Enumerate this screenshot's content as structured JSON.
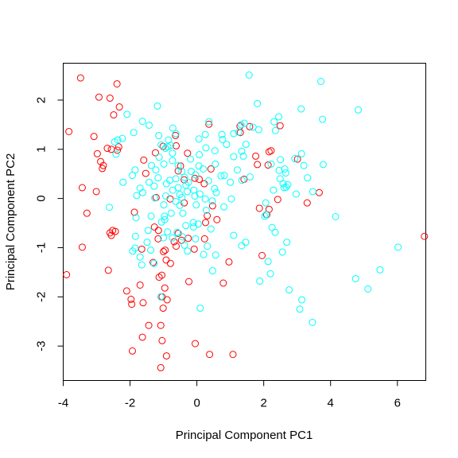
{
  "chart_data": {
    "type": "scatter",
    "xlabel": "Principal Component PC1",
    "ylabel": "Principal Component PC2",
    "xlim": [
      -4.0,
      6.85
    ],
    "ylim": [
      -3.7,
      2.75
    ],
    "xticks": [
      -4,
      -2,
      0,
      2,
      4,
      6
    ],
    "yticks": [
      -3,
      -2,
      -1,
      0,
      1,
      2
    ],
    "grid": false,
    "marker": "open-circle",
    "series": [
      {
        "color": "#ff0000",
        "points": [
          [
            -3.48,
            2.45
          ],
          [
            -2.93,
            2.06
          ],
          [
            -2.6,
            2.04
          ],
          [
            -2.39,
            2.33
          ],
          [
            -2.49,
            1.7
          ],
          [
            -2.32,
            1.86
          ],
          [
            -3.83,
            1.36
          ],
          [
            -3.08,
            1.26
          ],
          [
            -2.98,
            0.91
          ],
          [
            -2.68,
            1.02
          ],
          [
            -2.56,
            1.0
          ],
          [
            -2.34,
            1.05
          ],
          [
            -2.38,
            0.98
          ],
          [
            -2.88,
            0.75
          ],
          [
            -2.83,
            0.61
          ],
          [
            -2.8,
            0.67
          ],
          [
            -3.43,
            0.22
          ],
          [
            -3.01,
            0.14
          ],
          [
            -3.29,
            -0.3
          ],
          [
            -2.6,
            -0.7
          ],
          [
            -2.52,
            -0.65
          ],
          [
            -2.44,
            -0.67
          ],
          [
            -2.56,
            -0.75
          ],
          [
            -3.43,
            -0.99
          ],
          [
            -2.65,
            -1.46
          ],
          [
            -3.9,
            -1.55
          ],
          [
            -2.1,
            -1.88
          ],
          [
            -1.97,
            -2.05
          ],
          [
            -1.95,
            -2.15
          ],
          [
            -1.61,
            -2.12
          ],
          [
            -1.7,
            -1.76
          ],
          [
            -1.44,
            -2.58
          ],
          [
            -1.93,
            -3.1
          ],
          [
            -1.63,
            -2.82
          ],
          [
            -1.08,
            -2.58
          ],
          [
            -1.04,
            -2.89
          ],
          [
            -0.91,
            -3.2
          ],
          [
            -1.08,
            -3.44
          ],
          [
            -1.01,
            -2.23
          ],
          [
            -0.89,
            -2.06
          ],
          [
            -1.04,
            -2.0
          ],
          [
            -0.96,
            -1.82
          ],
          [
            -1.05,
            -1.56
          ],
          [
            -1.31,
            -1.3
          ],
          [
            -1.13,
            -1.6
          ],
          [
            -0.79,
            -1.32
          ],
          [
            -0.92,
            -1.25
          ],
          [
            -0.95,
            -1.05
          ],
          [
            -1.0,
            -1.08
          ],
          [
            -0.68,
            -0.88
          ],
          [
            -0.62,
            -0.97
          ],
          [
            -0.56,
            -0.71
          ],
          [
            -0.46,
            -0.85
          ],
          [
            -0.26,
            -0.81
          ],
          [
            -0.08,
            -1.03
          ],
          [
            0.23,
            -0.82
          ],
          [
            0.26,
            -0.49
          ],
          [
            0.31,
            -0.35
          ],
          [
            0.6,
            -0.43
          ],
          [
            0.47,
            -0.15
          ],
          [
            -0.24,
            -1.69
          ],
          [
            0.79,
            -1.72
          ],
          [
            0.96,
            -1.29
          ],
          [
            0.38,
            -3.17
          ],
          [
            -0.05,
            -2.95
          ],
          [
            1.08,
            -3.17
          ],
          [
            -1.59,
            0.78
          ],
          [
            -1.53,
            0.51
          ],
          [
            -1.24,
            0.93
          ],
          [
            -1.01,
            1.06
          ],
          [
            -0.62,
            1.07
          ],
          [
            -0.64,
            1.28
          ],
          [
            -1.65,
            -1.03
          ],
          [
            -1.27,
            -0.58
          ],
          [
            -1.15,
            -0.65
          ],
          [
            -1.16,
            -0.82
          ],
          [
            -0.38,
            -0.09
          ],
          [
            -1.22,
            0.02
          ],
          [
            -0.8,
            -0.01
          ],
          [
            -0.56,
            0.56
          ],
          [
            -0.28,
            0.92
          ],
          [
            -0.49,
            0.66
          ],
          [
            -0.38,
            0.38
          ],
          [
            -0.06,
            0.41
          ],
          [
            0.07,
            0.39
          ],
          [
            0.22,
            0.3
          ],
          [
            0.42,
            0.6
          ],
          [
            0.36,
            1.51
          ],
          [
            1.29,
            1.47
          ],
          [
            1.3,
            1.34
          ],
          [
            1.41,
            0.39
          ],
          [
            1.76,
            0.86
          ],
          [
            2.22,
            0.97
          ],
          [
            2.16,
            0.95
          ],
          [
            2.13,
            0.68
          ],
          [
            1.81,
            0.69
          ],
          [
            2.09,
            -0.33
          ],
          [
            2.16,
            -0.22
          ],
          [
            1.87,
            -0.2
          ],
          [
            1.95,
            -1.16
          ],
          [
            2.42,
            -0.02
          ],
          [
            3.01,
            0.8
          ],
          [
            3.3,
            -0.09
          ],
          [
            3.66,
            0.12
          ],
          [
            6.81,
            -0.77
          ],
          [
            1.58,
            1.46
          ],
          [
            2.49,
            1.48
          ],
          [
            -1.87,
            -0.28
          ]
        ]
      },
      {
        "color": "#00ffff",
        "points": [
          [
            1.56,
            2.51
          ],
          [
            3.71,
            2.38
          ],
          [
            1.81,
            1.93
          ],
          [
            -1.18,
            1.88
          ],
          [
            3.12,
            1.82
          ],
          [
            4.83,
            1.8
          ],
          [
            2.45,
            1.66
          ],
          [
            2.31,
            1.56
          ],
          [
            1.68,
            1.45
          ],
          [
            3.76,
            1.61
          ],
          [
            -2.09,
            1.71
          ],
          [
            -1.63,
            1.57
          ],
          [
            -1.43,
            1.49
          ],
          [
            -0.72,
            1.43
          ],
          [
            -0.63,
            1.32
          ],
          [
            -1.14,
            1.28
          ],
          [
            -1.89,
            1.34
          ],
          [
            -2.37,
            1.19
          ],
          [
            -2.46,
            1.15
          ],
          [
            -2.23,
            1.22
          ],
          [
            -0.85,
            1.19
          ],
          [
            -0.78,
            1.08
          ],
          [
            -0.94,
            1.02
          ],
          [
            -1.07,
            1.09
          ],
          [
            -0.87,
            1.05
          ],
          [
            0.25,
            1.3
          ],
          [
            0.36,
            1.56
          ],
          [
            0.06,
            1.21
          ],
          [
            0.54,
            0.97
          ],
          [
            0.77,
            1.2
          ],
          [
            1.25,
            1.35
          ],
          [
            1.42,
            1.53
          ],
          [
            1.1,
            1.32
          ],
          [
            1.85,
            1.4
          ],
          [
            2.35,
            1.38
          ],
          [
            1.47,
            1.1
          ],
          [
            1.39,
            0.86
          ],
          [
            1.34,
            0.96
          ],
          [
            1.1,
            0.85
          ],
          [
            0.89,
            1.1
          ],
          [
            0.55,
            0.7
          ],
          [
            0.82,
            0.47
          ],
          [
            1.0,
            0.33
          ],
          [
            1.35,
            0.37
          ],
          [
            2.5,
            0.79
          ],
          [
            2.93,
            0.81
          ],
          [
            3.13,
            0.91
          ],
          [
            3.2,
            0.67
          ],
          [
            3.78,
            0.69
          ],
          [
            2.63,
            0.6
          ],
          [
            2.66,
            0.52
          ],
          [
            2.58,
            0.3
          ],
          [
            2.61,
            0.22
          ],
          [
            2.67,
            0.23
          ],
          [
            2.72,
            0.28
          ],
          [
            2.49,
            0.4
          ],
          [
            2.46,
            0.57
          ],
          [
            2.22,
            0.7
          ],
          [
            3.31,
            0.42
          ],
          [
            3.47,
            0.14
          ],
          [
            2.97,
            0.09
          ],
          [
            2.29,
            0.17
          ],
          [
            2.06,
            -0.09
          ],
          [
            2.07,
            -0.33
          ],
          [
            2.03,
            -0.36
          ],
          [
            4.15,
            -0.37
          ],
          [
            2.25,
            -0.59
          ],
          [
            2.34,
            -0.69
          ],
          [
            2.13,
            -1.28
          ],
          [
            1.88,
            -1.68
          ],
          [
            2.69,
            -0.89
          ],
          [
            2.56,
            -1.09
          ],
          [
            2.2,
            -1.53
          ],
          [
            2.76,
            -1.86
          ],
          [
            3.14,
            -2.06
          ],
          [
            3.08,
            -2.25
          ],
          [
            3.46,
            -2.52
          ],
          [
            4.75,
            -1.63
          ],
          [
            5.12,
            -1.84
          ],
          [
            5.48,
            -1.45
          ],
          [
            6.02,
            -0.99
          ],
          [
            -2.62,
            -0.18
          ],
          [
            -1.82,
            -0.39
          ],
          [
            -1.8,
            0.06
          ],
          [
            -1.7,
            0.21
          ],
          [
            -1.93,
            0.47
          ],
          [
            -1.85,
            0.58
          ],
          [
            -2.42,
            0.9
          ],
          [
            -2.21,
            0.33
          ],
          [
            -1.28,
            0.25
          ],
          [
            -1.23,
            0.58
          ],
          [
            -1.13,
            0.84
          ],
          [
            -0.99,
            0.7
          ],
          [
            -0.73,
            0.77
          ],
          [
            -0.56,
            0.67
          ],
          [
            -0.45,
            0.55
          ],
          [
            -0.63,
            0.4
          ],
          [
            -0.37,
            0.43
          ],
          [
            -0.19,
            0.8
          ],
          [
            0.06,
            0.66
          ],
          [
            -0.33,
            0.27
          ],
          [
            -0.06,
            0.05
          ],
          [
            0.09,
            0.09
          ],
          [
            -0.29,
            0.14
          ],
          [
            -0.51,
            0.08
          ],
          [
            -0.72,
            0.17
          ],
          [
            -0.93,
            0.05
          ],
          [
            -1.26,
            0.01
          ],
          [
            -0.99,
            -0.13
          ],
          [
            -0.77,
            -0.3
          ],
          [
            -0.51,
            -0.14
          ],
          [
            -0.42,
            -0.3
          ],
          [
            -0.11,
            -0.49
          ],
          [
            0.04,
            -0.52
          ],
          [
            0.28,
            -0.24
          ],
          [
            0.46,
            -0.05
          ],
          [
            0.58,
            0.12
          ],
          [
            0.81,
            -0.17
          ],
          [
            0.72,
            0.46
          ],
          [
            0.35,
            0.36
          ],
          [
            -1.37,
            -0.36
          ],
          [
            -1.46,
            -0.65
          ],
          [
            -1.49,
            -0.89
          ],
          [
            -1.38,
            -1.05
          ],
          [
            -1.28,
            -1.32
          ],
          [
            -1.7,
            -1.19
          ],
          [
            -1.65,
            -1.35
          ],
          [
            -1.85,
            -1.01
          ],
          [
            -1.84,
            -0.77
          ],
          [
            -1.92,
            -1.07
          ],
          [
            -0.96,
            -0.43
          ],
          [
            -0.97,
            -0.36
          ],
          [
            -1.06,
            -0.48
          ],
          [
            -0.88,
            -0.68
          ],
          [
            -0.73,
            -0.8
          ],
          [
            -0.59,
            -0.69
          ],
          [
            -0.43,
            -0.78
          ],
          [
            -0.37,
            -0.95
          ],
          [
            -0.28,
            -1.07
          ],
          [
            -0.04,
            -0.82
          ],
          [
            0.2,
            -1.14
          ],
          [
            0.31,
            -0.97
          ],
          [
            0.56,
            -1.15
          ],
          [
            0.47,
            -1.47
          ],
          [
            1.1,
            -0.75
          ],
          [
            1.46,
            -0.89
          ],
          [
            1.34,
            -0.96
          ],
          [
            0.1,
            -2.23
          ],
          [
            -1.08,
            -2.0
          ],
          [
            -1.0,
            -0.8
          ],
          [
            -0.09,
            0.17
          ],
          [
            0.25,
            -0.01
          ],
          [
            1.03,
            -0.01
          ],
          [
            0.75,
            1.3
          ],
          [
            1.59,
            0.44
          ],
          [
            1.21,
            0.58
          ],
          [
            0.07,
            0.89
          ],
          [
            -0.17,
            0.55
          ],
          [
            -0.25,
            0.33
          ],
          [
            -0.02,
            -0.13
          ],
          [
            -0.33,
            -0.55
          ],
          [
            -0.56,
            0.22
          ],
          [
            -0.91,
            0.3
          ],
          [
            -1.16,
            0.42
          ],
          [
            -1.43,
            0.33
          ],
          [
            -0.73,
            0.92
          ],
          [
            -0.45,
            0.02
          ],
          [
            -0.04,
            0.48
          ],
          [
            0.19,
            0.6
          ],
          [
            0.53,
            0.2
          ],
          [
            0.42,
            -0.62
          ],
          [
            -0.1,
            -0.58
          ],
          [
            -0.63,
            -0.06
          ],
          [
            -0.81,
            0.37
          ],
          [
            -1.36,
            0.67
          ],
          [
            -1.62,
            0.12
          ],
          [
            1.32,
            1.5
          ],
          [
            0.27,
            1.03
          ]
        ]
      }
    ]
  }
}
